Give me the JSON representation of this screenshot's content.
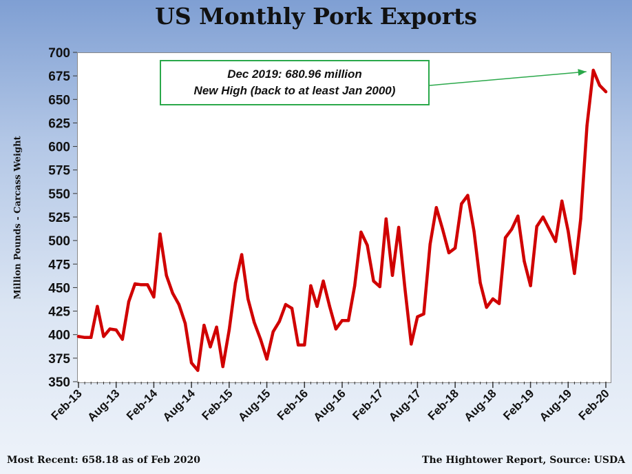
{
  "title": "US Monthly Pork Exports",
  "footer": {
    "left": "Most Recent: 658.18 as of Feb 2020",
    "right": "The Hightower Report, Source: USDA"
  },
  "annotation": {
    "line1": "Dec 2019: 680.96 million",
    "line2": "New High  (back to at least Jan 2000)"
  },
  "colors": {
    "series": "#d00000",
    "annotation_border": "#2aa84a",
    "arrow": "#2aa84a"
  },
  "chart_data": {
    "type": "line",
    "title": "US Monthly Pork Exports",
    "xlabel": "",
    "ylabel": "Million Pounds - Carcass Weight",
    "ylim": [
      350,
      700
    ],
    "yticks": [
      350,
      375,
      400,
      425,
      450,
      475,
      500,
      525,
      550,
      575,
      600,
      625,
      650,
      675,
      700
    ],
    "xtick_labels": [
      "Feb-13",
      "Aug-13",
      "Feb-14",
      "Aug-14",
      "Feb-15",
      "Aug-15",
      "Feb-16",
      "Aug-16",
      "Feb-17",
      "Aug-17",
      "Feb-18",
      "Aug-18",
      "Feb-19",
      "Aug-19",
      "Feb-20"
    ],
    "grid": false,
    "legend": "none",
    "x": [
      "2013-02",
      "2013-03",
      "2013-04",
      "2013-05",
      "2013-06",
      "2013-07",
      "2013-08",
      "2013-09",
      "2013-10",
      "2013-11",
      "2013-12",
      "2014-01",
      "2014-02",
      "2014-03",
      "2014-04",
      "2014-05",
      "2014-06",
      "2014-07",
      "2014-08",
      "2014-09",
      "2014-10",
      "2014-11",
      "2014-12",
      "2015-01",
      "2015-02",
      "2015-03",
      "2015-04",
      "2015-05",
      "2015-06",
      "2015-07",
      "2015-08",
      "2015-09",
      "2015-10",
      "2015-11",
      "2015-12",
      "2016-01",
      "2016-02",
      "2016-03",
      "2016-04",
      "2016-05",
      "2016-06",
      "2016-07",
      "2016-08",
      "2016-09",
      "2016-10",
      "2016-11",
      "2016-12",
      "2017-01",
      "2017-02",
      "2017-03",
      "2017-04",
      "2017-05",
      "2017-06",
      "2017-07",
      "2017-08",
      "2017-09",
      "2017-10",
      "2017-11",
      "2017-12",
      "2018-01",
      "2018-02",
      "2018-03",
      "2018-04",
      "2018-05",
      "2018-06",
      "2018-07",
      "2018-08",
      "2018-09",
      "2018-10",
      "2018-11",
      "2018-12",
      "2019-01",
      "2019-02",
      "2019-03",
      "2019-04",
      "2019-05",
      "2019-06",
      "2019-07",
      "2019-08",
      "2019-09",
      "2019-10",
      "2019-11",
      "2019-12",
      "2020-01",
      "2020-02"
    ],
    "series": [
      {
        "values": [
          398,
          397,
          397,
          430,
          398,
          406,
          405,
          395,
          435,
          454,
          453,
          453,
          440,
          507,
          463,
          444,
          432,
          412,
          370,
          362,
          410,
          387,
          408,
          366,
          405,
          455,
          485,
          438,
          413,
          395,
          374,
          403,
          414,
          432,
          428,
          389,
          389,
          452,
          430,
          457,
          430,
          406,
          415,
          415,
          452,
          509,
          495,
          457,
          451,
          523,
          463,
          514,
          449,
          390,
          419,
          422,
          496,
          535,
          512,
          487,
          492,
          539,
          548,
          510,
          455,
          429,
          438,
          433,
          503,
          512,
          526,
          478,
          452,
          515,
          525,
          512,
          499,
          542,
          510,
          465,
          523,
          622,
          680.96,
          665,
          658.18
        ]
      }
    ]
  }
}
